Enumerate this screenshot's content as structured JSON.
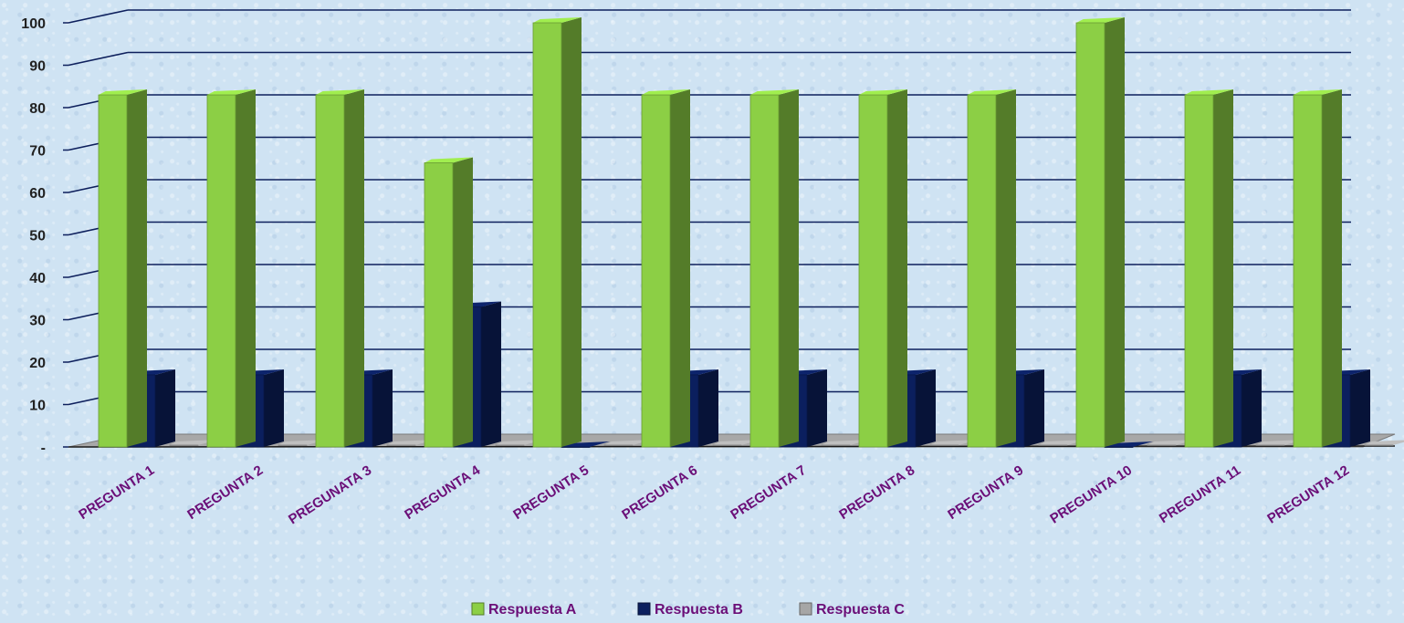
{
  "chart_data": {
    "type": "bar",
    "categories": [
      "PREGUNTA 1",
      "PREGUNTA 2",
      "PREGUNATA 3",
      "PREGUNTA 4",
      "PREGUNTA 5",
      "PREGUNTA 6",
      "PREGUNTA 7",
      "PREGUNTA 8",
      "PREGUNTA 9",
      "PREGUNTA 10",
      "PREGUNTA 11",
      "PREGUNTA 12"
    ],
    "series": [
      {
        "name": "Respuesta A",
        "color": "#8ccf45",
        "values": [
          83,
          83,
          83,
          67,
          100,
          83,
          83,
          83,
          83,
          100,
          83,
          83
        ]
      },
      {
        "name": "Respuesta B",
        "color": "#0b1f5e",
        "values": [
          17,
          17,
          17,
          33,
          0,
          17,
          17,
          17,
          17,
          0,
          17,
          17
        ]
      },
      {
        "name": "Respuesta C",
        "color": "#a6a6a6",
        "values": [
          0,
          0,
          0,
          0,
          0,
          0,
          0,
          0,
          0,
          0,
          0,
          0
        ]
      }
    ],
    "yticks": [
      "-",
      "10",
      "20",
      "30",
      "40",
      "50",
      "60",
      "70",
      "80",
      "90",
      "100"
    ],
    "ylim": [
      0,
      100
    ],
    "grid": true,
    "legend_position": "bottom"
  }
}
